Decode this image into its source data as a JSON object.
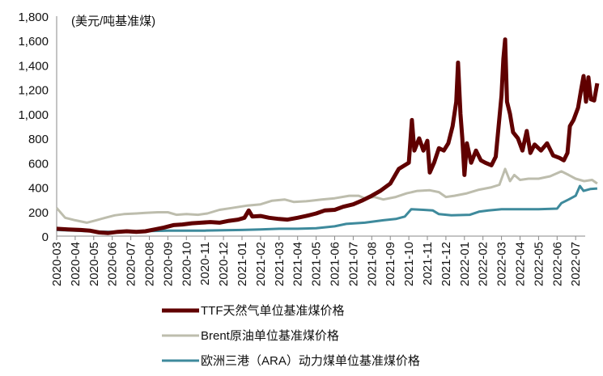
{
  "chart_data": {
    "type": "line",
    "unit_label": "(美元/吨基准煤)",
    "ylim": [
      0,
      1800
    ],
    "yticks": [
      "0",
      "200",
      "400",
      "600",
      "800",
      "1,000",
      "1,200",
      "1,400",
      "1,600",
      "1,800"
    ],
    "ytick_values": [
      0,
      200,
      400,
      600,
      800,
      1000,
      1200,
      1400,
      1600,
      1800
    ],
    "xticks": [
      "2020-03",
      "2020-04",
      "2020-05",
      "2020-06",
      "2020-07",
      "2020-08",
      "2020-09",
      "2020-10",
      "2020-11",
      "2020-12",
      "2021-01",
      "2021-02",
      "2021-03",
      "2021-04",
      "2021-05",
      "2021-06",
      "2021-07",
      "2021-08",
      "2021-09",
      "2021-10",
      "2021-11",
      "2021-12",
      "2022-01",
      "2022-02",
      "2022-03",
      "2022-04",
      "2022-05",
      "2022-06",
      "2022-07"
    ],
    "grid": false,
    "legend": "bottom",
    "series": [
      {
        "name": "TTF天然气单位基准煤价格",
        "color": "#600000",
        "points": [
          [
            "2020-03-01",
            60
          ],
          [
            "2020-03-20",
            55
          ],
          [
            "2020-04-10",
            50
          ],
          [
            "2020-04-25",
            45
          ],
          [
            "2020-05-10",
            30
          ],
          [
            "2020-05-25",
            25
          ],
          [
            "2020-06-10",
            35
          ],
          [
            "2020-06-25",
            40
          ],
          [
            "2020-07-10",
            35
          ],
          [
            "2020-07-25",
            40
          ],
          [
            "2020-08-10",
            55
          ],
          [
            "2020-08-25",
            70
          ],
          [
            "2020-09-10",
            90
          ],
          [
            "2020-09-25",
            95
          ],
          [
            "2020-10-10",
            105
          ],
          [
            "2020-10-25",
            110
          ],
          [
            "2020-11-10",
            115
          ],
          [
            "2020-11-25",
            110
          ],
          [
            "2020-12-10",
            125
          ],
          [
            "2020-12-25",
            135
          ],
          [
            "2021-01-05",
            150
          ],
          [
            "2021-01-12",
            210
          ],
          [
            "2021-01-18",
            160
          ],
          [
            "2021-02-01",
            165
          ],
          [
            "2021-02-15",
            150
          ],
          [
            "2021-03-01",
            140
          ],
          [
            "2021-03-15",
            135
          ],
          [
            "2021-04-01",
            150
          ],
          [
            "2021-04-15",
            165
          ],
          [
            "2021-05-01",
            185
          ],
          [
            "2021-05-15",
            210
          ],
          [
            "2021-06-01",
            215
          ],
          [
            "2021-06-15",
            240
          ],
          [
            "2021-07-01",
            260
          ],
          [
            "2021-07-15",
            290
          ],
          [
            "2021-08-01",
            330
          ],
          [
            "2021-08-15",
            370
          ],
          [
            "2021-09-01",
            430
          ],
          [
            "2021-09-15",
            550
          ],
          [
            "2021-10-01",
            600
          ],
          [
            "2021-10-06",
            950
          ],
          [
            "2021-10-10",
            700
          ],
          [
            "2021-10-18",
            800
          ],
          [
            "2021-10-25",
            700
          ],
          [
            "2021-11-01",
            780
          ],
          [
            "2021-11-05",
            520
          ],
          [
            "2021-11-12",
            600
          ],
          [
            "2021-11-20",
            720
          ],
          [
            "2021-11-28",
            700
          ],
          [
            "2021-12-05",
            760
          ],
          [
            "2021-12-12",
            900
          ],
          [
            "2021-12-18",
            1100
          ],
          [
            "2021-12-21",
            1420
          ],
          [
            "2021-12-25",
            1000
          ],
          [
            "2021-12-28",
            800
          ],
          [
            "2022-01-01",
            500
          ],
          [
            "2022-01-05",
            760
          ],
          [
            "2022-01-12",
            600
          ],
          [
            "2022-01-20",
            700
          ],
          [
            "2022-01-28",
            620
          ],
          [
            "2022-02-05",
            600
          ],
          [
            "2022-02-15",
            580
          ],
          [
            "2022-02-22",
            650
          ],
          [
            "2022-03-01",
            1150
          ],
          [
            "2022-03-04",
            1450
          ],
          [
            "2022-03-07",
            1610
          ],
          [
            "2022-03-10",
            1100
          ],
          [
            "2022-03-15",
            1000
          ],
          [
            "2022-03-20",
            850
          ],
          [
            "2022-03-28",
            800
          ],
          [
            "2022-04-05",
            700
          ],
          [
            "2022-04-12",
            860
          ],
          [
            "2022-04-18",
            680
          ],
          [
            "2022-04-25",
            750
          ],
          [
            "2022-05-05",
            700
          ],
          [
            "2022-05-15",
            760
          ],
          [
            "2022-05-25",
            660
          ],
          [
            "2022-06-05",
            640
          ],
          [
            "2022-06-12",
            620
          ],
          [
            "2022-06-18",
            680
          ],
          [
            "2022-06-22",
            900
          ],
          [
            "2022-06-28",
            950
          ],
          [
            "2022-07-05",
            1050
          ],
          [
            "2022-07-10",
            1200
          ],
          [
            "2022-07-14",
            1310
          ],
          [
            "2022-07-18",
            1100
          ],
          [
            "2022-07-22",
            1300
          ],
          [
            "2022-07-26",
            1120
          ],
          [
            "2022-08-01",
            1110
          ],
          [
            "2022-08-06",
            1250
          ]
        ]
      },
      {
        "name": "Brent原油单位基准煤价格",
        "color": "#bdbdad",
        "points": [
          [
            "2020-03-01",
            230
          ],
          [
            "2020-03-15",
            150
          ],
          [
            "2020-04-01",
            130
          ],
          [
            "2020-04-20",
            110
          ],
          [
            "2020-05-05",
            130
          ],
          [
            "2020-05-20",
            150
          ],
          [
            "2020-06-05",
            170
          ],
          [
            "2020-06-20",
            180
          ],
          [
            "2020-07-10",
            185
          ],
          [
            "2020-07-25",
            190
          ],
          [
            "2020-08-15",
            195
          ],
          [
            "2020-09-01",
            195
          ],
          [
            "2020-09-15",
            175
          ],
          [
            "2020-10-01",
            180
          ],
          [
            "2020-10-20",
            175
          ],
          [
            "2020-11-05",
            185
          ],
          [
            "2020-11-25",
            215
          ],
          [
            "2020-12-15",
            230
          ],
          [
            "2021-01-10",
            250
          ],
          [
            "2021-02-01",
            260
          ],
          [
            "2021-02-20",
            290
          ],
          [
            "2021-03-10",
            300
          ],
          [
            "2021-03-25",
            280
          ],
          [
            "2021-04-15",
            285
          ],
          [
            "2021-05-10",
            300
          ],
          [
            "2021-06-01",
            310
          ],
          [
            "2021-06-25",
            330
          ],
          [
            "2021-07-10",
            330
          ],
          [
            "2021-07-20",
            310
          ],
          [
            "2021-08-05",
            320
          ],
          [
            "2021-08-20",
            300
          ],
          [
            "2021-09-10",
            320
          ],
          [
            "2021-09-28",
            350
          ],
          [
            "2021-10-15",
            370
          ],
          [
            "2021-11-05",
            375
          ],
          [
            "2021-11-20",
            360
          ],
          [
            "2021-12-01",
            320
          ],
          [
            "2021-12-15",
            330
          ],
          [
            "2022-01-05",
            350
          ],
          [
            "2022-01-25",
            380
          ],
          [
            "2022-02-15",
            400
          ],
          [
            "2022-02-28",
            420
          ],
          [
            "2022-03-07",
            550
          ],
          [
            "2022-03-15",
            450
          ],
          [
            "2022-03-22",
            500
          ],
          [
            "2022-04-01",
            460
          ],
          [
            "2022-04-15",
            470
          ],
          [
            "2022-05-01",
            470
          ],
          [
            "2022-05-20",
            490
          ],
          [
            "2022-06-08",
            530
          ],
          [
            "2022-06-20",
            500
          ],
          [
            "2022-07-01",
            470
          ],
          [
            "2022-07-15",
            450
          ],
          [
            "2022-07-28",
            460
          ],
          [
            "2022-08-06",
            430
          ]
        ]
      },
      {
        "name": "欧洲三港（ARA）动力煤单位基准煤价格",
        "color": "#3e8a9c",
        "points": [
          [
            "2020-03-01",
            50
          ],
          [
            "2020-04-01",
            45
          ],
          [
            "2020-05-01",
            38
          ],
          [
            "2020-06-01",
            35
          ],
          [
            "2020-07-01",
            40
          ],
          [
            "2020-08-01",
            42
          ],
          [
            "2020-09-01",
            45
          ],
          [
            "2020-10-01",
            45
          ],
          [
            "2020-11-01",
            45
          ],
          [
            "2020-12-01",
            48
          ],
          [
            "2021-01-01",
            50
          ],
          [
            "2021-02-01",
            55
          ],
          [
            "2021-03-01",
            60
          ],
          [
            "2021-04-01",
            60
          ],
          [
            "2021-05-01",
            65
          ],
          [
            "2021-06-01",
            80
          ],
          [
            "2021-06-20",
            100
          ],
          [
            "2021-07-20",
            110
          ],
          [
            "2021-08-20",
            130
          ],
          [
            "2021-09-10",
            140
          ],
          [
            "2021-09-25",
            160
          ],
          [
            "2021-10-05",
            220
          ],
          [
            "2021-10-25",
            215
          ],
          [
            "2021-11-10",
            210
          ],
          [
            "2021-11-20",
            180
          ],
          [
            "2021-12-10",
            170
          ],
          [
            "2022-01-10",
            175
          ],
          [
            "2022-01-25",
            200
          ],
          [
            "2022-02-10",
            210
          ],
          [
            "2022-03-01",
            220
          ],
          [
            "2022-04-01",
            220
          ],
          [
            "2022-05-01",
            220
          ],
          [
            "2022-06-01",
            225
          ],
          [
            "2022-06-08",
            270
          ],
          [
            "2022-06-20",
            300
          ],
          [
            "2022-07-01",
            330
          ],
          [
            "2022-07-08",
            410
          ],
          [
            "2022-07-14",
            370
          ],
          [
            "2022-07-25",
            385
          ],
          [
            "2022-08-06",
            390
          ]
        ]
      }
    ]
  }
}
